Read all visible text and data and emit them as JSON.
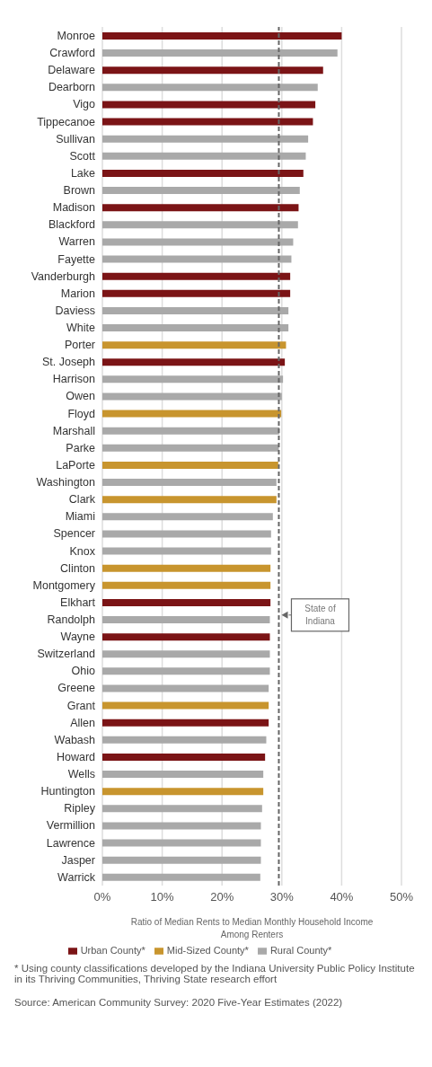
{
  "chart_data": {
    "type": "bar",
    "orientation": "horizontal",
    "stacked": true,
    "categories": [
      "Monroe",
      "Crawford",
      "Delaware",
      "Dearborn",
      "Vigo",
      "Tippecanoe",
      "Sullivan",
      "Scott",
      "Lake",
      "Brown",
      "Madison",
      "Blackford",
      "Warren",
      "Fayette",
      "Vanderburgh",
      "Marion",
      "Daviess",
      "White",
      "Porter",
      "St. Joseph",
      "Harrison",
      "Owen",
      "Floyd",
      "Marshall",
      "Parke",
      "LaPorte",
      "Washington",
      "Clark",
      "Miami",
      "Spencer",
      "Knox",
      "Clinton",
      "Montgomery",
      "Elkhart",
      "Randolph",
      "Wayne",
      "Switzerland",
      "Ohio",
      "Greene",
      "Grant",
      "Allen",
      "Wabash",
      "Howard",
      "Wells",
      "Huntington",
      "Ripley",
      "Vermillion",
      "Lawrence",
      "Jasper",
      "Warrick"
    ],
    "series": [
      {
        "name": "Urban County*",
        "color": "#7b1416",
        "values": [
          40.0,
          null,
          36.9,
          null,
          35.6,
          35.2,
          null,
          null,
          33.6,
          null,
          32.8,
          null,
          null,
          null,
          31.4,
          31.4,
          null,
          null,
          null,
          30.5,
          null,
          null,
          null,
          null,
          null,
          null,
          null,
          null,
          null,
          null,
          null,
          null,
          null,
          28.1,
          null,
          28.0,
          null,
          null,
          null,
          null,
          27.8,
          null,
          27.2,
          null,
          null,
          null,
          null,
          null,
          null,
          null
        ]
      },
      {
        "name": "Mid-Sized County*",
        "color": "#c8952e",
        "values": [
          null,
          null,
          null,
          null,
          null,
          null,
          null,
          null,
          null,
          null,
          null,
          null,
          null,
          null,
          null,
          null,
          null,
          null,
          30.7,
          null,
          null,
          null,
          29.9,
          null,
          null,
          29.4,
          null,
          29.1,
          null,
          null,
          null,
          28.1,
          28.1,
          null,
          null,
          null,
          null,
          null,
          null,
          27.8,
          null,
          null,
          null,
          null,
          26.9,
          null,
          null,
          null,
          null,
          null
        ]
      },
      {
        "name": "Rural County*",
        "color": "#a9a9a9",
        "values": [
          null,
          39.3,
          null,
          36.0,
          null,
          null,
          34.4,
          34.0,
          null,
          33.0,
          null,
          32.7,
          31.9,
          31.6,
          null,
          null,
          31.1,
          31.1,
          null,
          null,
          30.2,
          30.0,
          null,
          29.6,
          29.5,
          null,
          29.1,
          null,
          28.5,
          28.2,
          28.2,
          null,
          null,
          null,
          28.0,
          null,
          28.0,
          28.0,
          27.8,
          null,
          null,
          27.4,
          null,
          26.9,
          null,
          26.7,
          26.5,
          26.5,
          26.5,
          26.4
        ]
      }
    ],
    "xlim": [
      0,
      50
    ],
    "xticks": [
      {
        "value": 0,
        "label": "0%"
      },
      {
        "value": 10,
        "label": "10%"
      },
      {
        "value": 20,
        "label": "20%"
      },
      {
        "value": 30,
        "label": "30%"
      },
      {
        "value": 40,
        "label": "40%"
      },
      {
        "value": 50,
        "label": "50%"
      }
    ],
    "xlabel": "Ratio of Median Rents to Median Monthly Household Income Among Renters",
    "grid": "x",
    "legend": "bottom",
    "ref_lines": [
      {
        "axis": "x",
        "value": 29.5,
        "label": "State of Indiana",
        "color": "#666666",
        "line_style": "dashed"
      }
    ],
    "annotations": [
      "* Using county classifications developed by the Indiana University Public Policy Institute in its Thriving Communities, Thriving State research effort",
      "Source: American Community Survey: 2020 Five-Year Estimates (2022)"
    ]
  }
}
